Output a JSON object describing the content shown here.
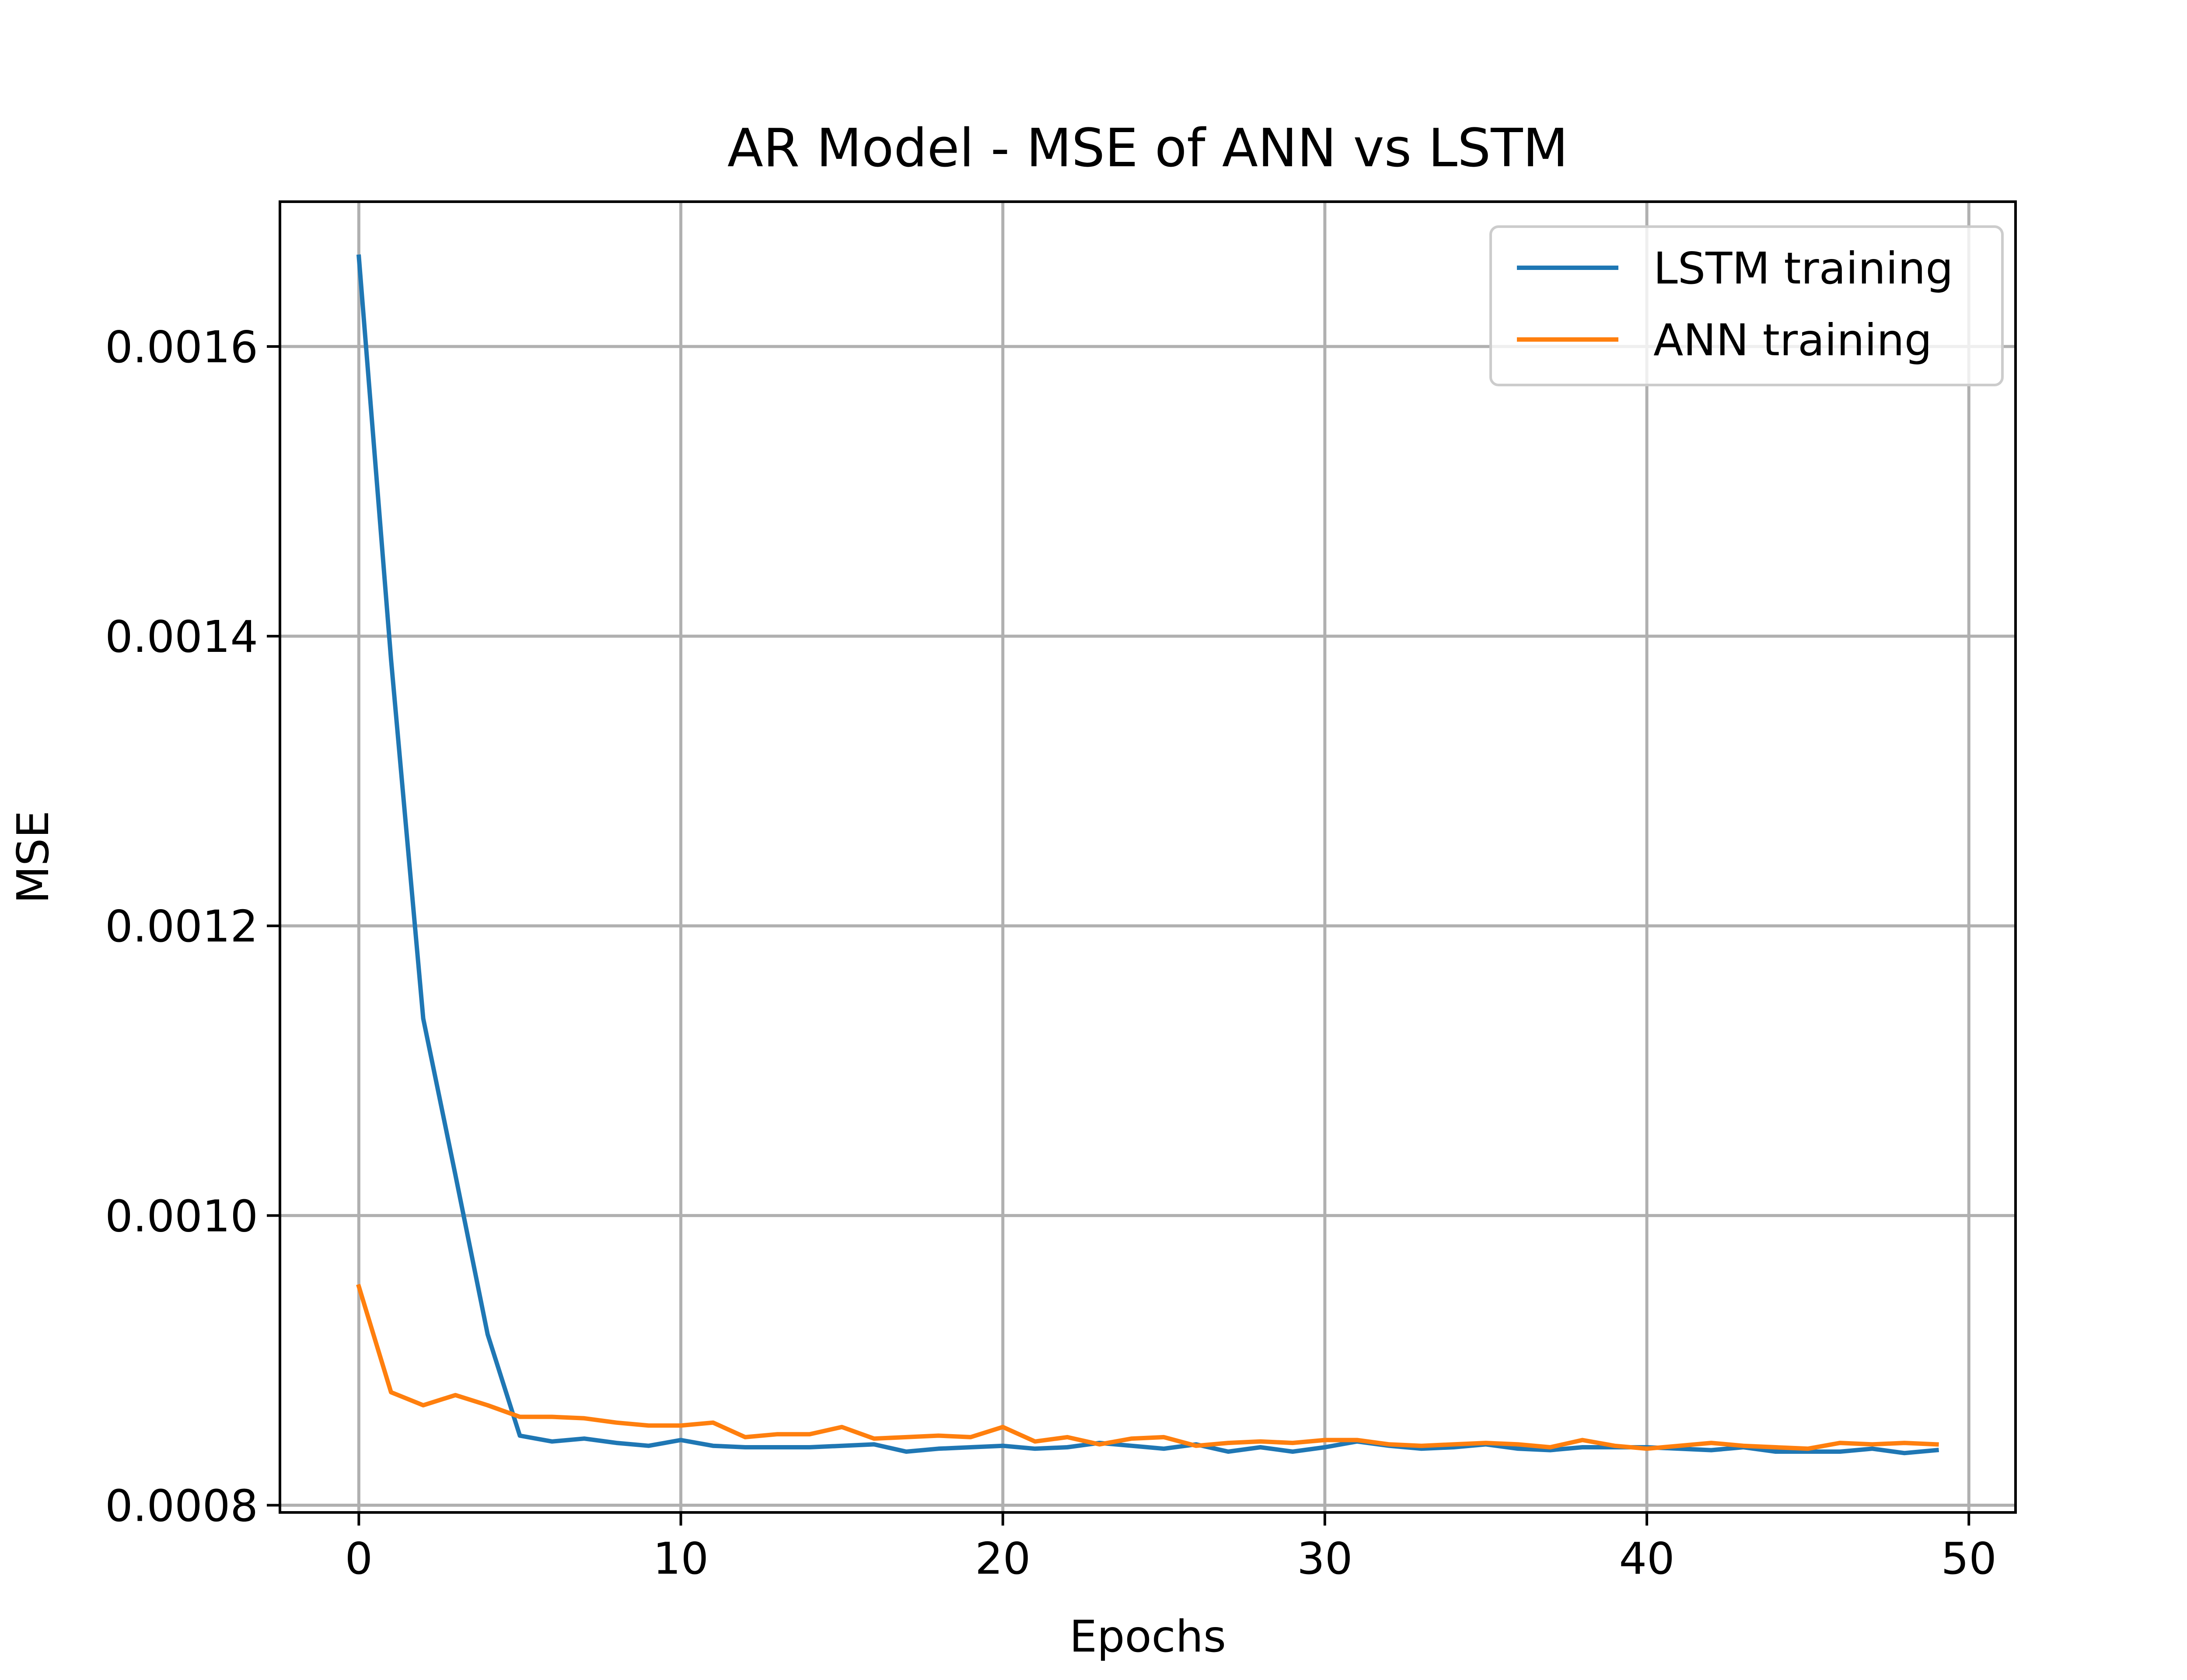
{
  "chart_data": {
    "type": "line",
    "title": "AR Model - MSE of ANN vs LSTM",
    "xlabel": "Epochs",
    "ylabel": "MSE",
    "xlim": [
      -2.45,
      51.45
    ],
    "ylim": [
      0.000795,
      0.0017
    ],
    "xticks": [
      0,
      10,
      20,
      30,
      40,
      50
    ],
    "xtick_labels": [
      "0",
      "10",
      "20",
      "30",
      "40",
      "50"
    ],
    "yticks": [
      0.0008,
      0.001,
      0.0012,
      0.0014,
      0.0016
    ],
    "ytick_labels": [
      "0.0008",
      "0.0010",
      "0.0012",
      "0.0014",
      "0.0016"
    ],
    "grid": true,
    "legend_position": "top-right",
    "x": [
      0,
      1,
      2,
      3,
      4,
      5,
      6,
      7,
      8,
      9,
      10,
      11,
      12,
      13,
      14,
      15,
      16,
      17,
      18,
      19,
      20,
      21,
      22,
      23,
      24,
      25,
      26,
      27,
      28,
      29,
      30,
      31,
      32,
      33,
      34,
      35,
      36,
      37,
      38,
      39,
      40,
      41,
      42,
      43,
      44,
      45,
      46,
      47,
      48,
      49
    ],
    "series": [
      {
        "name": "LSTM training",
        "color": "#1f77b4",
        "values": [
          0.001662,
          0.001384,
          0.001136,
          0.001028,
          0.000918,
          0.000848,
          0.000844,
          0.000846,
          0.000843,
          0.000841,
          0.000845,
          0.000841,
          0.00084,
          0.00084,
          0.00084,
          0.000841,
          0.000842,
          0.000837,
          0.000839,
          0.00084,
          0.000841,
          0.000839,
          0.00084,
          0.000843,
          0.000841,
          0.000839,
          0.000842,
          0.000837,
          0.00084,
          0.000837,
          0.00084,
          0.000844,
          0.000841,
          0.000839,
          0.00084,
          0.000842,
          0.000839,
          0.000838,
          0.00084,
          0.00084,
          0.00084,
          0.000839,
          0.000838,
          0.00084,
          0.000837,
          0.000837,
          0.000837,
          0.000839,
          0.000836,
          0.000838
        ]
      },
      {
        "name": "ANN training",
        "color": "#ff7f0e",
        "values": [
          0.000951,
          0.000878,
          0.000869,
          0.000876,
          0.000869,
          0.000861,
          0.000861,
          0.00086,
          0.000857,
          0.000855,
          0.000855,
          0.000857,
          0.000847,
          0.000849,
          0.000849,
          0.000854,
          0.000846,
          0.000847,
          0.000848,
          0.000847,
          0.000854,
          0.000844,
          0.000847,
          0.000842,
          0.000846,
          0.000847,
          0.000841,
          0.000843,
          0.000844,
          0.000843,
          0.000845,
          0.000845,
          0.000842,
          0.000841,
          0.000842,
          0.000843,
          0.000842,
          0.00084,
          0.000845,
          0.000841,
          0.000839,
          0.000841,
          0.000843,
          0.000841,
          0.00084,
          0.000839,
          0.000843,
          0.000842,
          0.000843,
          0.000842
        ]
      }
    ]
  }
}
